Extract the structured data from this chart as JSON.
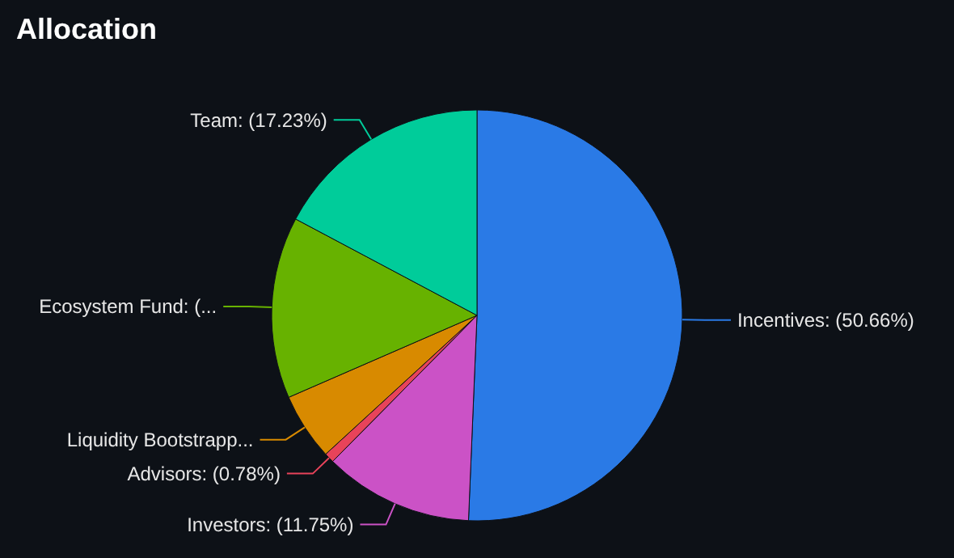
{
  "chart_data": {
    "type": "pie",
    "title": "Allocation",
    "categories": [
      "Incentives",
      "Investors",
      "Advisors",
      "Liquidity Bootstrapp...",
      "Ecosystem Fund",
      "Team"
    ],
    "values": [
      50.66,
      11.75,
      0.78,
      5.28,
      14.3,
      17.23
    ],
    "value_labels": [
      "(50.66%)",
      "(11.75%)",
      "(0.78%)",
      null,
      "(...",
      "(17.23%)"
    ],
    "colors": [
      "#2a7ae6",
      "#cb52c6",
      "#e8435a",
      "#d88a00",
      "#67b200",
      "#00cc9a"
    ]
  }
}
